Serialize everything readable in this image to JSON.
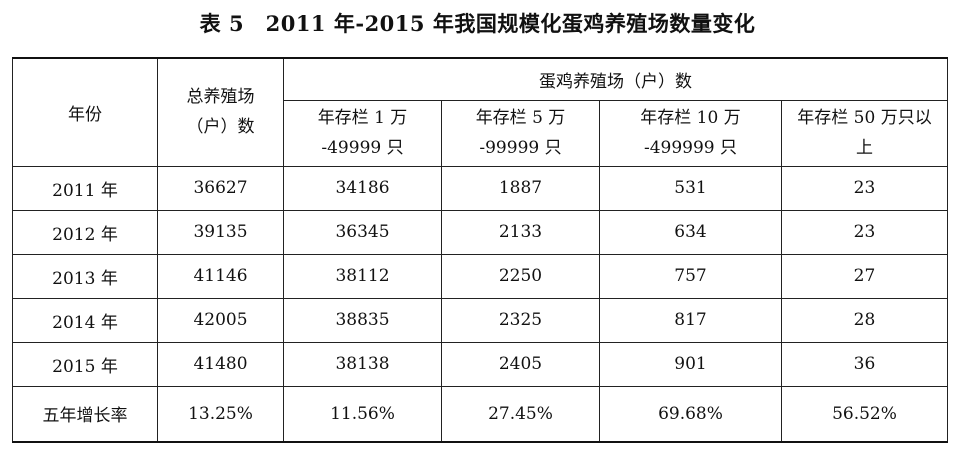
{
  "title": "表 5　2011 年-2015 年我国规模化蛋鸡养殖场数量变化",
  "headers": {
    "year": "年份",
    "total": [
      "总养殖场",
      "（户）数"
    ],
    "group": "蛋鸡养殖场（户）数",
    "sub": [
      [
        "年存栏 1 万",
        "-49999 只"
      ],
      [
        "年存栏 5 万",
        "-99999 只"
      ],
      [
        "年存栏 10 万",
        "-499999 只"
      ],
      [
        "年存栏 50 万只以",
        "上"
      ]
    ]
  },
  "rows": [
    [
      "2011 年",
      "36627",
      "34186",
      "1887",
      "531",
      "23"
    ],
    [
      "2012 年",
      "39135",
      "36345",
      "2133",
      "634",
      "23"
    ],
    [
      "2013 年",
      "41146",
      "38112",
      "2250",
      "757",
      "27"
    ],
    [
      "2014 年",
      "42005",
      "38835",
      "2325",
      "817",
      "28"
    ],
    [
      "2015 年",
      "41480",
      "38138",
      "2405",
      "901",
      "36"
    ]
  ],
  "footer": [
    "五年增长率",
    "13.25%",
    "11.56%",
    "27.45%",
    "69.68%",
    "56.52%"
  ]
}
